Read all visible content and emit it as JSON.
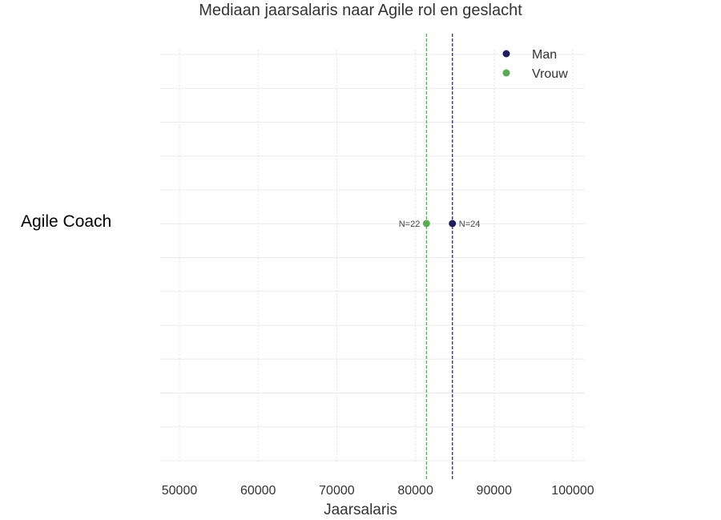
{
  "chart_data": {
    "type": "scatter",
    "title": "Mediaan jaarsalaris naar Agile rol en geslacht",
    "xlabel": "Jaarsalaris",
    "ylabel": "",
    "xlim": [
      47500,
      101500
    ],
    "xticks": [
      50000,
      60000,
      70000,
      80000,
      90000,
      100000
    ],
    "tick_labels": [
      "50000",
      "60000",
      "70000",
      "80000",
      "90000",
      "100000"
    ],
    "categories": [
      "Agile Coach"
    ],
    "grid": true,
    "legend_position": "top-right",
    "series": [
      {
        "name": "Man",
        "color": "#1f1d5e",
        "values": [
          84700
        ],
        "n_label": "N=24",
        "median_line": 84700
      },
      {
        "name": "Vrouw",
        "color": "#5aaa55",
        "values": [
          81400
        ],
        "n_label": "N=22",
        "median_line": 81400
      }
    ]
  }
}
